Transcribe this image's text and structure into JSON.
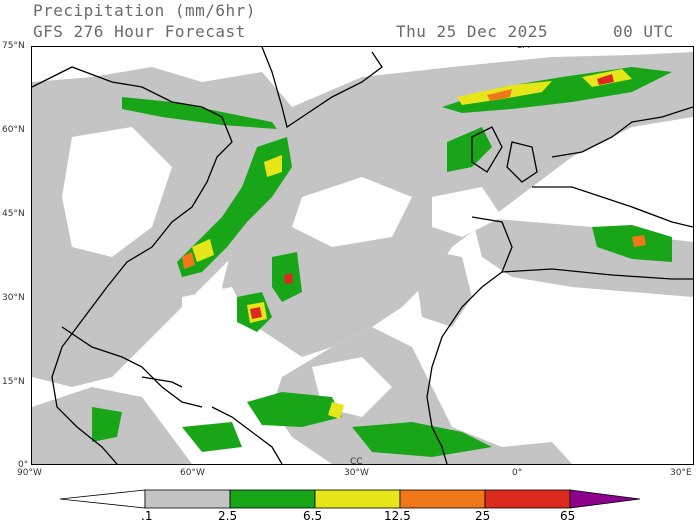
{
  "header": {
    "title": "Precipitation (mm/6hr)",
    "subtitle": "GFS 276 Hour Forecast",
    "valid_date": "Thu 25 Dec 2025",
    "valid_time": "00 UTC"
  },
  "map": {
    "model": "GFS",
    "forecast_hour": 276,
    "region": "North Atlantic",
    "lat_ticks": [
      "75°N",
      "60°N",
      "45°N",
      "30°N",
      "15°N",
      "0°"
    ],
    "lon_ticks": [
      "90°W",
      "60°W",
      "30°W",
      "0°",
      "30°E"
    ],
    "small_labels": [
      "CM",
      "CC"
    ],
    "colors": {
      "land_outline": "#000000",
      "ocean": "#ffffff",
      "light_precip": "#c4c4c4",
      "moderate_precip": "#18a618",
      "heavy_precip": "#e6e61a",
      "very_heavy_precip": "#f07818",
      "intense_precip": "#dc2a1e",
      "extreme_precip": "#8c008c"
    }
  },
  "legend": {
    "thresholds": [
      ".1",
      "2.5",
      "6.5",
      "12.5",
      "25",
      "65"
    ],
    "colors": [
      "#c4c4c4",
      "#18a618",
      "#e6e61a",
      "#f07818",
      "#dc2a1e",
      "#8c008c"
    ],
    "units": "mm/6hr"
  }
}
